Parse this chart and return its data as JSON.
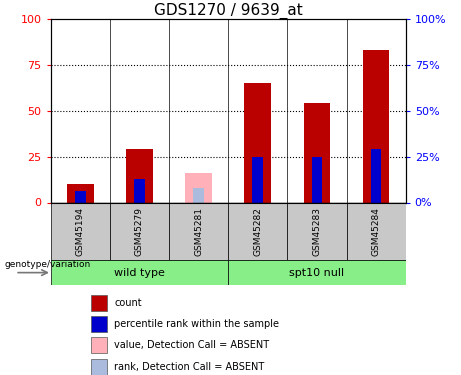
{
  "title": "GDS1270 / 9639_at",
  "samples": [
    "GSM45194",
    "GSM45279",
    "GSM45281",
    "GSM45282",
    "GSM45283",
    "GSM45284"
  ],
  "group_names": [
    "wild type",
    "spt10 null"
  ],
  "group_starts": [
    0,
    3
  ],
  "group_ends": [
    3,
    6
  ],
  "red_bars": [
    10,
    29,
    0,
    65,
    54,
    83
  ],
  "blue_bars": [
    6,
    13,
    0,
    25,
    25,
    29
  ],
  "pink_bars": [
    0,
    0,
    16,
    0,
    0,
    0
  ],
  "lightblue_bars": [
    0,
    0,
    8,
    0,
    0,
    0
  ],
  "ylim": [
    0,
    100
  ],
  "yticks": [
    0,
    25,
    50,
    75,
    100
  ],
  "bar_width": 0.45,
  "thin_bar_width": 0.18,
  "red_color": "#BB0000",
  "blue_color": "#0000CC",
  "pink_color": "#FFB0B8",
  "lightblue_color": "#AABBDD",
  "green_color": "#88EE88",
  "gray_color": "#C8C8C8",
  "legend_labels": [
    "count",
    "percentile rank within the sample",
    "value, Detection Call = ABSENT",
    "rank, Detection Call = ABSENT"
  ]
}
